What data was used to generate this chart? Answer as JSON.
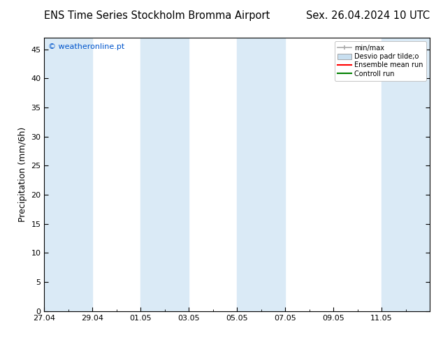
{
  "title_left": "ENS Time Series Stockholm Bromma Airport",
  "title_right": "Sex. 26.04.2024 10 UTC",
  "ylabel": "Precipitation (mm/6h)",
  "watermark": "© weatheronline.pt",
  "watermark_color": "#0055cc",
  "xtick_labels": [
    "27.04",
    "29.04",
    "01.05",
    "03.05",
    "05.05",
    "07.05",
    "09.05",
    "11.05"
  ],
  "ytick_values": [
    0,
    5,
    10,
    15,
    20,
    25,
    30,
    35,
    40,
    45
  ],
  "ylim": [
    0,
    47
  ],
  "xlim_start": 0,
  "xlim_end": 16,
  "shaded_bands_x": [
    [
      0.0,
      2.0
    ],
    [
      4.0,
      6.0
    ],
    [
      8.0,
      10.0
    ],
    [
      14.0,
      16.5
    ]
  ],
  "shade_color": "#daeaf6",
  "bg_color": "#ffffff",
  "legend_labels": [
    "min/max",
    "Desvio padr tilde;o",
    "Ensemble mean run",
    "Controll run"
  ],
  "legend_colors": [
    "#aaaaaa",
    "#c8dff0",
    "#ff0000",
    "#008000"
  ],
  "title_fontsize": 10.5,
  "axis_fontsize": 9,
  "tick_fontsize": 8
}
